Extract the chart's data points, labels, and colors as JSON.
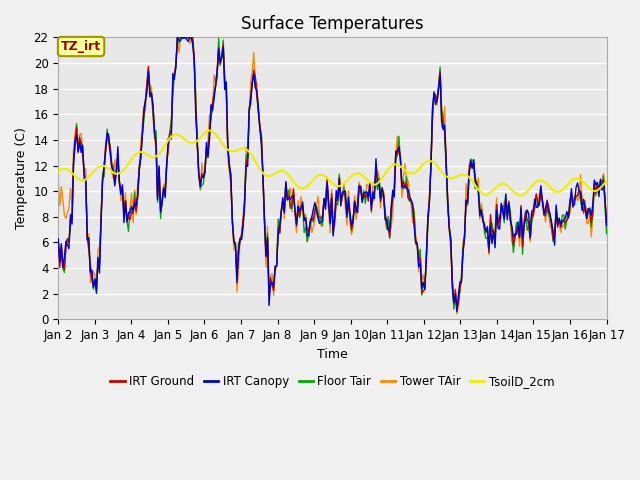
{
  "title": "Surface Temperatures",
  "xlabel": "Time",
  "ylabel": "Temperature (C)",
  "ylim": [
    0,
    22
  ],
  "fig_bg_color": "#f0f0f0",
  "plot_bg_color": "#e8e8e8",
  "series_colors": {
    "IRT Ground": "#cc0000",
    "IRT Canopy": "#0000cc",
    "Floor Tair": "#00aa00",
    "Tower TAir": "#ff8800",
    "TsoilD_2cm": "#eeee00"
  },
  "legend_labels": [
    "IRT Ground",
    "IRT Canopy",
    "Floor Tair",
    "Tower TAir",
    "TsoilD_2cm"
  ],
  "annotation_text": "TZ_irt",
  "annotation_box_color": "#ffff99",
  "annotation_text_color": "#990000",
  "tick_dates": [
    "Jan 2",
    "Jan 3",
    "Jan 4",
    "Jan 5",
    "Jan 6",
    "Jan 7",
    "Jan 8",
    "Jan 9",
    "Jan 10",
    "Jan 11",
    "Jan 12",
    "Jan 13",
    "Jan 14",
    "Jan 15",
    "Jan 16",
    "Jan 17"
  ],
  "n_days": 15,
  "pts_per_day": 24,
  "title_fontsize": 12,
  "axis_fontsize": 9,
  "tick_fontsize": 8.5,
  "linewidth": 1.0,
  "grid_color": "#ffffff",
  "grid_lw": 1.0
}
